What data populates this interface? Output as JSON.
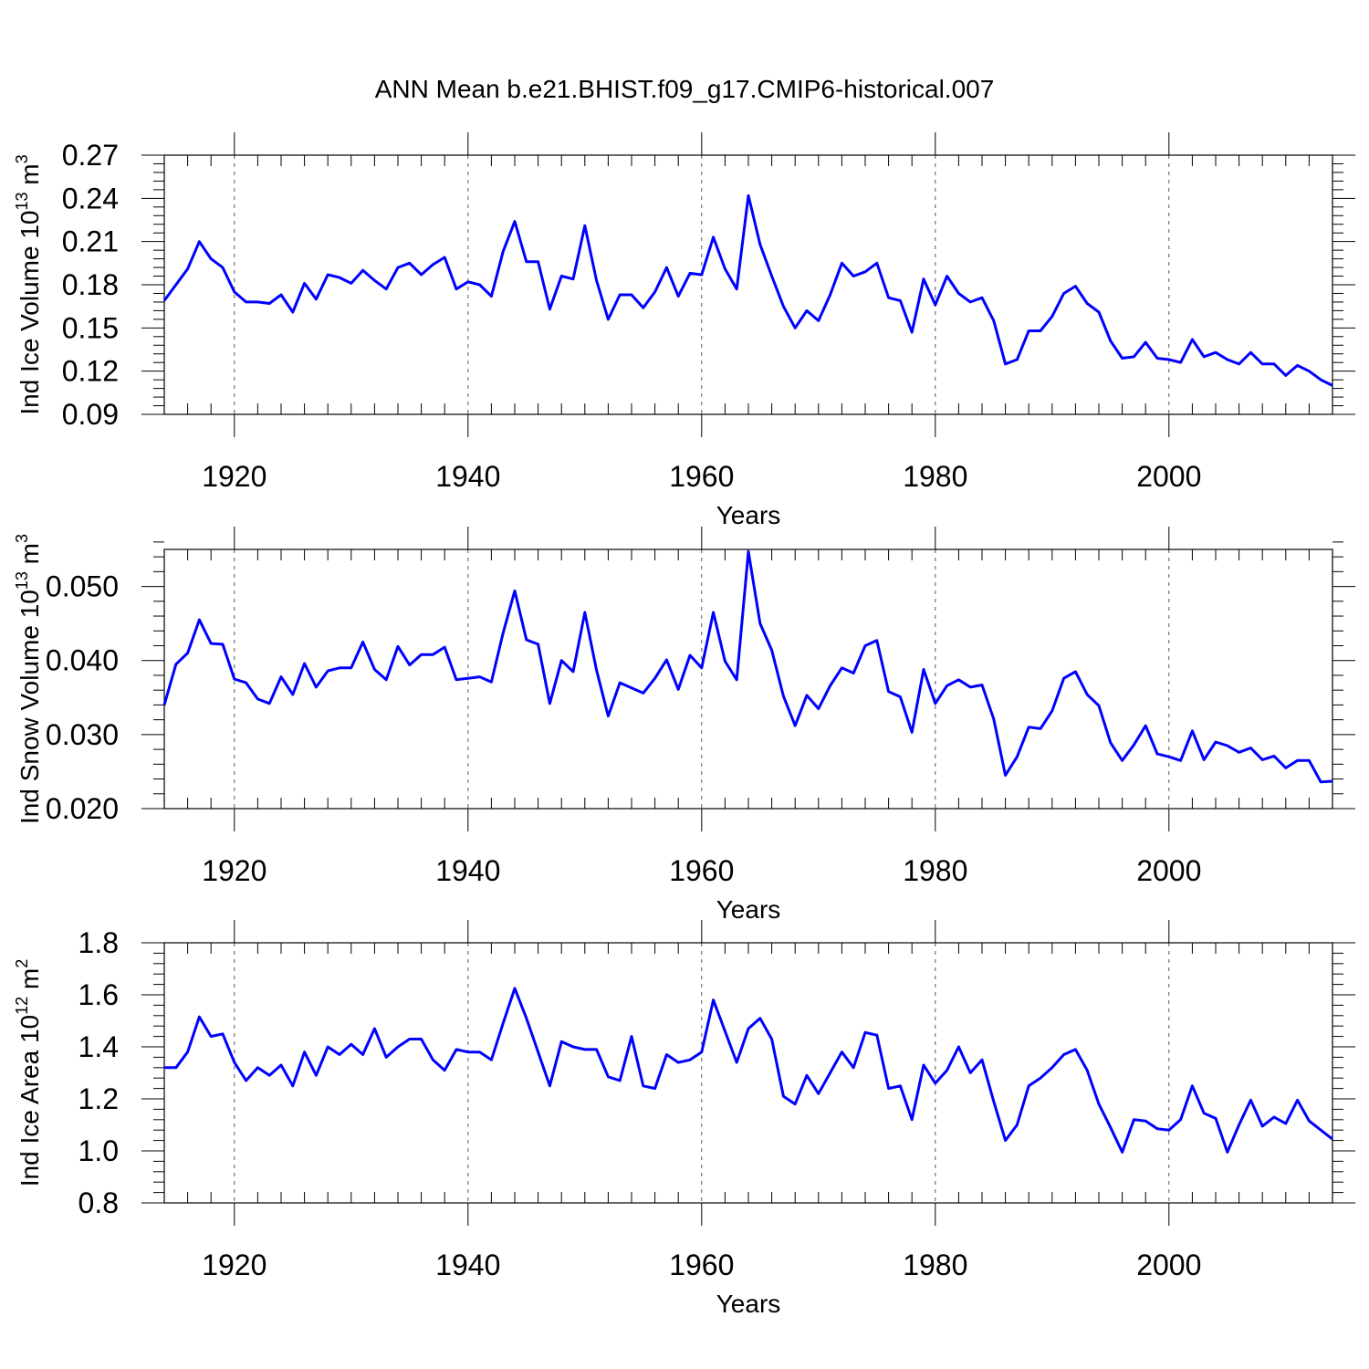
{
  "title": "ANN Mean b.e21.BHIST.f09_g17.CMIP6-historical.007",
  "line_color": "#0000ff",
  "chart_data": [
    {
      "type": "line",
      "xlabel": "Years",
      "ylabel": {
        "main": "Ind Ice Volume 10",
        "exp": "13",
        "unit": " m",
        "unit_exp": "3"
      },
      "xlim": [
        1914,
        2014
      ],
      "ylim": [
        0.09,
        0.27
      ],
      "xticks": [
        1920,
        1940,
        1960,
        1980,
        2000
      ],
      "xtick_labels": [
        "1920",
        "1940",
        "1960",
        "1980",
        "2000"
      ],
      "yticks": [
        0.09,
        0.12,
        0.15,
        0.18,
        0.21,
        0.24,
        0.27
      ],
      "ytick_labels": [
        "0.09",
        "0.12",
        "0.15",
        "0.18",
        "0.21",
        "0.24",
        "0.27"
      ],
      "grid": "vertical dashed at major x ticks",
      "x_start": 1914,
      "values": [
        0.169,
        0.18,
        0.191,
        0.21,
        0.198,
        0.192,
        0.175,
        0.168,
        0.168,
        0.167,
        0.173,
        0.161,
        0.181,
        0.17,
        0.187,
        0.185,
        0.181,
        0.19,
        0.183,
        0.177,
        0.192,
        0.195,
        0.187,
        0.194,
        0.199,
        0.177,
        0.182,
        0.18,
        0.172,
        0.203,
        0.224,
        0.196,
        0.196,
        0.163,
        0.186,
        0.184,
        0.221,
        0.183,
        0.156,
        0.173,
        0.173,
        0.164,
        0.175,
        0.192,
        0.172,
        0.188,
        0.187,
        0.213,
        0.191,
        0.177,
        0.242,
        0.208,
        0.186,
        0.165,
        0.15,
        0.162,
        0.155,
        0.173,
        0.195,
        0.186,
        0.189,
        0.195,
        0.171,
        0.169,
        0.147,
        0.184,
        0.166,
        0.186,
        0.174,
        0.168,
        0.171,
        0.155,
        0.125,
        0.128,
        0.148,
        0.148,
        0.158,
        0.174,
        0.179,
        0.167,
        0.161,
        0.141,
        0.129,
        0.13,
        0.14,
        0.129,
        0.128,
        0.126,
        0.142,
        0.13,
        0.133,
        0.128,
        0.125,
        0.133,
        0.125,
        0.125,
        0.117,
        0.124,
        0.12,
        0.114,
        0.11
      ]
    },
    {
      "type": "line",
      "xlabel": "Years",
      "ylabel": {
        "main": "Ind Snow Volume 10",
        "exp": "13",
        "unit": " m",
        "unit_exp": "3"
      },
      "xlim": [
        1914,
        2014
      ],
      "ylim": [
        0.02,
        0.055
      ],
      "xticks": [
        1920,
        1940,
        1960,
        1980,
        2000
      ],
      "xtick_labels": [
        "1920",
        "1940",
        "1960",
        "1980",
        "2000"
      ],
      "yticks": [
        0.02,
        0.03,
        0.04,
        0.05
      ],
      "ytick_labels": [
        "0.020",
        "0.030",
        "0.040",
        "0.050"
      ],
      "grid": "vertical dashed at major x ticks",
      "x_start": 1914,
      "values": [
        0.034,
        0.0395,
        0.041,
        0.0455,
        0.0423,
        0.0422,
        0.0375,
        0.037,
        0.0348,
        0.0342,
        0.0378,
        0.0354,
        0.0396,
        0.0364,
        0.0386,
        0.039,
        0.039,
        0.0425,
        0.0388,
        0.0374,
        0.0419,
        0.0394,
        0.0408,
        0.0408,
        0.0418,
        0.0374,
        0.0376,
        0.0378,
        0.0371,
        0.0437,
        0.0494,
        0.0428,
        0.0422,
        0.0342,
        0.04,
        0.0385,
        0.0465,
        0.0387,
        0.0325,
        0.037,
        0.0363,
        0.0356,
        0.0376,
        0.0401,
        0.0361,
        0.0407,
        0.039,
        0.0465,
        0.0399,
        0.0374,
        0.0547,
        0.045,
        0.0414,
        0.0352,
        0.0312,
        0.0353,
        0.0335,
        0.0366,
        0.039,
        0.0383,
        0.042,
        0.0427,
        0.0358,
        0.0351,
        0.0303,
        0.0388,
        0.0342,
        0.0366,
        0.0374,
        0.0364,
        0.0367,
        0.0321,
        0.0245,
        0.027,
        0.031,
        0.0308,
        0.0332,
        0.0376,
        0.0385,
        0.0354,
        0.0339,
        0.0289,
        0.0265,
        0.0286,
        0.0312,
        0.0274,
        0.027,
        0.0265,
        0.0305,
        0.0266,
        0.029,
        0.0285,
        0.0276,
        0.0282,
        0.0266,
        0.0271,
        0.0255,
        0.0265,
        0.0265,
        0.0236,
        0.0237
      ]
    },
    {
      "type": "line",
      "xlabel": "Years",
      "ylabel": {
        "main": "Ind Ice Area 10",
        "exp": "12",
        "unit": " m",
        "unit_exp": "2"
      },
      "xlim": [
        1914,
        2014
      ],
      "ylim": [
        0.8,
        1.8
      ],
      "xticks": [
        1920,
        1940,
        1960,
        1980,
        2000
      ],
      "xtick_labels": [
        "1920",
        "1940",
        "1960",
        "1980",
        "2000"
      ],
      "yticks": [
        0.8,
        1.0,
        1.2,
        1.4,
        1.6,
        1.8
      ],
      "ytick_labels": [
        "0.8",
        "1.0",
        "1.2",
        "1.4",
        "1.6",
        "1.8"
      ],
      "grid": "vertical dashed at major x ticks",
      "x_start": 1914,
      "values": [
        1.32,
        1.32,
        1.38,
        1.515,
        1.44,
        1.45,
        1.34,
        1.27,
        1.32,
        1.29,
        1.33,
        1.25,
        1.38,
        1.29,
        1.4,
        1.37,
        1.41,
        1.37,
        1.47,
        1.36,
        1.4,
        1.43,
        1.43,
        1.35,
        1.31,
        1.39,
        1.38,
        1.38,
        1.35,
        1.49,
        1.625,
        1.51,
        1.38,
        1.25,
        1.42,
        1.4,
        1.39,
        1.39,
        1.285,
        1.27,
        1.44,
        1.25,
        1.24,
        1.37,
        1.34,
        1.35,
        1.38,
        1.58,
        1.46,
        1.34,
        1.47,
        1.51,
        1.43,
        1.21,
        1.18,
        1.29,
        1.22,
        1.3,
        1.38,
        1.32,
        1.455,
        1.445,
        1.24,
        1.25,
        1.12,
        1.33,
        1.26,
        1.31,
        1.4,
        1.3,
        1.35,
        1.19,
        1.04,
        1.1,
        1.25,
        1.28,
        1.32,
        1.37,
        1.39,
        1.31,
        1.18,
        1.09,
        0.995,
        1.12,
        1.115,
        1.085,
        1.08,
        1.12,
        1.25,
        1.145,
        1.125,
        0.995,
        1.1,
        1.195,
        1.095,
        1.13,
        1.105,
        1.195,
        1.115,
        1.08,
        1.045
      ]
    }
  ]
}
